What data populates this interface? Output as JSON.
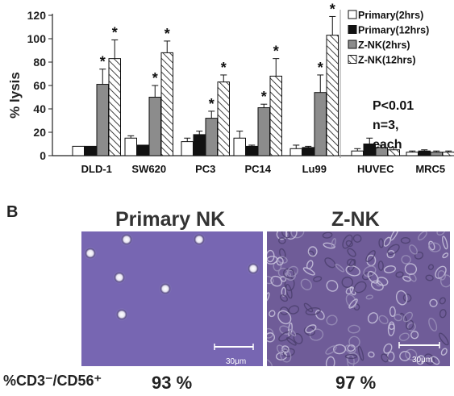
{
  "chart_data": {
    "type": "bar",
    "ylabel": "% lysis",
    "ylim": [
      0,
      120
    ],
    "yticks": [
      0,
      20,
      40,
      60,
      80,
      100,
      120
    ],
    "categories": [
      "DLD-1",
      "SW620",
      "PC3",
      "PC14",
      "Lu99",
      "HUVEC",
      "MRC5"
    ],
    "series": [
      {
        "name": "Primary(2hrs)",
        "pattern": "white",
        "values": [
          8,
          15,
          12,
          15,
          6,
          4,
          3
        ],
        "errors": [
          0,
          2,
          3,
          6,
          3,
          2,
          1
        ],
        "significant": [
          false,
          false,
          false,
          false,
          false,
          false,
          false
        ]
      },
      {
        "name": "Primary(12hrs)",
        "pattern": "black",
        "values": [
          8,
          9,
          18,
          8,
          7,
          10,
          4
        ],
        "errors": [
          0,
          0,
          3,
          1,
          1,
          5,
          1
        ],
        "significant": [
          false,
          false,
          false,
          false,
          false,
          false,
          false
        ]
      },
      {
        "name": "Z-NK(2hrs)",
        "pattern": "gray",
        "values": [
          61,
          50,
          32,
          41,
          54,
          7,
          3
        ],
        "errors": [
          13,
          10,
          6,
          3,
          15,
          2,
          1
        ],
        "significant": [
          true,
          true,
          true,
          true,
          true,
          false,
          false
        ]
      },
      {
        "name": "Z-NK(12hrs)",
        "pattern": "hatched",
        "values": [
          83,
          88,
          63,
          68,
          103,
          5,
          3
        ],
        "errors": [
          16,
          10,
          6,
          15,
          16,
          2,
          1
        ],
        "significant": [
          true,
          true,
          true,
          true,
          true,
          false,
          false
        ]
      }
    ],
    "significance_marker": "*",
    "annotation": [
      "P<0.01",
      "n=3,",
      "each"
    ],
    "legend_position": "right",
    "colors": {
      "white": "#ffffff",
      "black": "#111111",
      "gray": "#8c8c8c",
      "hatch": "#111111"
    }
  },
  "panel_b": {
    "letter": "B",
    "left": {
      "title": "Primary NK",
      "scale_label": "30μm",
      "percent": "93 %"
    },
    "right": {
      "title": "Z-NK",
      "scale_label": "30μm",
      "percent": "97 %"
    },
    "marker_label": "%CD3⁻/CD56⁺",
    "colors": {
      "left_bg": "#7766b2",
      "right_bg": "#6f5c98"
    }
  }
}
